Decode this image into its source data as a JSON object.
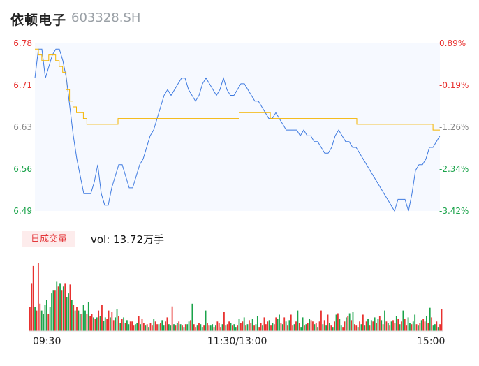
{
  "header": {
    "name": "依顿电子",
    "code": "603328.SH"
  },
  "price_axis": {
    "left_ticks": [
      "6.78",
      "6.71",
      "6.63",
      "6.56",
      "6.49"
    ],
    "right_ticks": [
      "0.89%",
      "-0.19%",
      "-1.26%",
      "-2.34%",
      "-3.42%"
    ]
  },
  "volume_header": {
    "badge": "日成交量",
    "text": "vol: 13.72万手"
  },
  "time_axis": [
    "09:30",
    "11:30/13:00",
    "15:00"
  ],
  "colors": {
    "up": "#e8312f",
    "down": "#1aa34a",
    "neutral": "#888888",
    "price_line": "#3e7ae0",
    "avg_line": "#f4b400"
  },
  "chart_data": [
    {
      "type": "line",
      "ylim": [
        6.49,
        6.78
      ],
      "series": [
        {
          "values": [
            6.72,
            6.77,
            6.77,
            6.72,
            6.74,
            6.76,
            6.77,
            6.77,
            6.75,
            6.72,
            6.67,
            6.62,
            6.58,
            6.55,
            6.52,
            6.52,
            6.52,
            6.54,
            6.57,
            6.52,
            6.5,
            6.5,
            6.53,
            6.55,
            6.57,
            6.57,
            6.55,
            6.53,
            6.53,
            6.55,
            6.57,
            6.58,
            6.6,
            6.62,
            6.63,
            6.65,
            6.67,
            6.69,
            6.7,
            6.69,
            6.7,
            6.71,
            6.72,
            6.72,
            6.7,
            6.69,
            6.68,
            6.69,
            6.71,
            6.72,
            6.71,
            6.7,
            6.69,
            6.7,
            6.72,
            6.7,
            6.69,
            6.69,
            6.7,
            6.71,
            6.71,
            6.7,
            6.69,
            6.68,
            6.68,
            6.67,
            6.66,
            6.65,
            6.65,
            6.66,
            6.65,
            6.64,
            6.63,
            6.63,
            6.63,
            6.63,
            6.62,
            6.63,
            6.62,
            6.62,
            6.61,
            6.61,
            6.6,
            6.59,
            6.59,
            6.6,
            6.62,
            6.63,
            6.62,
            6.61,
            6.61,
            6.6,
            6.6,
            6.59,
            6.58,
            6.57,
            6.56,
            6.55,
            6.54,
            6.53,
            6.52,
            6.51,
            6.5,
            6.49,
            6.51,
            6.51,
            6.51,
            6.49,
            6.52,
            6.56,
            6.57,
            6.57,
            6.58,
            6.6,
            6.6,
            6.61,
            6.62
          ],
          "x_index_step": 2
        },
        {
          "values": [
            6.77,
            6.76,
            6.75,
            6.75,
            6.76,
            6.76,
            6.75,
            6.74,
            6.73,
            6.7,
            6.68,
            6.67,
            6.66,
            6.66,
            6.65,
            6.64,
            6.64,
            6.64,
            6.64,
            6.64,
            6.64,
            6.64,
            6.64,
            6.64,
            6.65,
            6.65,
            6.65,
            6.65,
            6.65,
            6.65,
            6.65,
            6.65,
            6.65,
            6.65,
            6.65,
            6.65,
            6.65,
            6.65,
            6.65,
            6.65,
            6.65,
            6.65,
            6.65,
            6.65,
            6.65,
            6.65,
            6.65,
            6.65,
            6.65,
            6.65,
            6.65,
            6.65,
            6.65,
            6.65,
            6.65,
            6.65,
            6.65,
            6.65,
            6.65,
            6.66,
            6.66,
            6.66,
            6.66,
            6.66,
            6.66,
            6.66,
            6.66,
            6.66,
            6.65,
            6.65,
            6.65,
            6.65,
            6.65,
            6.65,
            6.65,
            6.65,
            6.65,
            6.65,
            6.65,
            6.65,
            6.65,
            6.65,
            6.65,
            6.65,
            6.65,
            6.65,
            6.65,
            6.65,
            6.65,
            6.65,
            6.65,
            6.65,
            6.65,
            6.64,
            6.64,
            6.64,
            6.64,
            6.64,
            6.64,
            6.64,
            6.64,
            6.64,
            6.64,
            6.64,
            6.64,
            6.64,
            6.64,
            6.64,
            6.64,
            6.64,
            6.64,
            6.64,
            6.64,
            6.64,
            6.64,
            6.63,
            6.63,
            6.63
          ],
          "x_index_step": 2
        }
      ]
    },
    {
      "type": "bar",
      "values": [
        35,
        70,
        95,
        35,
        30,
        100,
        40,
        30,
        25,
        38,
        45,
        25,
        35,
        55,
        60,
        60,
        72,
        65,
        70,
        60,
        65,
        70,
        50,
        55,
        68,
        45,
        38,
        30,
        35,
        30,
        25,
        25,
        38,
        30,
        25,
        42,
        22,
        25,
        20,
        18,
        20,
        30,
        22,
        38,
        15,
        20,
        18,
        30,
        20,
        28,
        16,
        20,
        32,
        22,
        12,
        18,
        20,
        12,
        16,
        10,
        14,
        14,
        8,
        10,
        12,
        22,
        10,
        18,
        12,
        8,
        10,
        6,
        12,
        8,
        18,
        14,
        10,
        10,
        12,
        16,
        8,
        14,
        20,
        10,
        8,
        36,
        10,
        8,
        12,
        14,
        10,
        8,
        6,
        10,
        10,
        14,
        16,
        40,
        10,
        6,
        8,
        12,
        10,
        6,
        8,
        30,
        12,
        8,
        8,
        10,
        6,
        8,
        14,
        12,
        6,
        10,
        28,
        8,
        10,
        14,
        12,
        8,
        10,
        6,
        8,
        18,
        12,
        14,
        20,
        8,
        10,
        16,
        12,
        18,
        8,
        10,
        22,
        6,
        12,
        8,
        20,
        10,
        14,
        16,
        8,
        12,
        10,
        20,
        18,
        24,
        12,
        10,
        20,
        14,
        8,
        16,
        24,
        8,
        10,
        14,
        30,
        12,
        6,
        20,
        8,
        10,
        12,
        18,
        16,
        14,
        10,
        12,
        6,
        14,
        30,
        10,
        16,
        8,
        24,
        12,
        8,
        6,
        14,
        24,
        26,
        18,
        8,
        6,
        14,
        20,
        22,
        26,
        16,
        28,
        10,
        8,
        6,
        14,
        10,
        24,
        8,
        14,
        18,
        8,
        16,
        14,
        20,
        12,
        18,
        22,
        16,
        10,
        30,
        14,
        12,
        8,
        14,
        16,
        12,
        22,
        18,
        10,
        14,
        30,
        18,
        8,
        20,
        12,
        10,
        14,
        24,
        10,
        8,
        12,
        16,
        18,
        14,
        22,
        12,
        34,
        20,
        8,
        10,
        14,
        6,
        10,
        32
      ],
      "dirs": "UUUDUUUDDDDUDDDUDUDUDUDDUDUDUDDUDDUDUUDUDUDUDDUUDUUDDUDUDUDDUUUDDUDUUDUDUUDUUDUDDUUDDUDUDUDUDUDDUDUUDUDDUDUUDDUDUUUDUDUUDUDDUDUUDUDUUDUDDUUDUUUDUDUUDDUDUDUDUUDUDUDDUDUDUUDUDUUDUDUDUDUDUDDUUDUDUDUUDUDUDUDUDUDUDUDUDUDUDUUDUDUDUUDDUDDUDUDUUDUDUDDUDUUDDU"
    }
  ]
}
